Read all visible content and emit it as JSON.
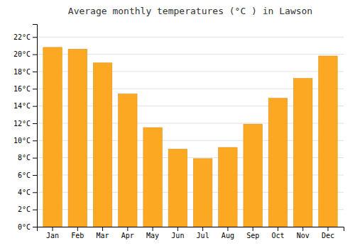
{
  "chart_data": {
    "type": "bar",
    "title": "Average monthly temperatures (°C ) in Lawson",
    "categories": [
      "Jan",
      "Feb",
      "Mar",
      "Apr",
      "May",
      "Jun",
      "Jul",
      "Aug",
      "Sep",
      "Oct",
      "Nov",
      "Dec"
    ],
    "values": [
      20.8,
      20.6,
      19.0,
      15.4,
      11.5,
      9.0,
      7.9,
      9.2,
      11.9,
      14.9,
      17.2,
      19.8
    ],
    "color": "#FCA823",
    "ylim": [
      0,
      23.5
    ],
    "yticks": [
      {
        "value": 0,
        "label": "0°C"
      },
      {
        "value": 2,
        "label": "2°C"
      },
      {
        "value": 4,
        "label": "4°C"
      },
      {
        "value": 6,
        "label": "6°C"
      },
      {
        "value": 8,
        "label": "8°C"
      },
      {
        "value": 10,
        "label": "10°C"
      },
      {
        "value": 12,
        "label": "12°C"
      },
      {
        "value": 14,
        "label": "14°C"
      },
      {
        "value": 16,
        "label": "16°C"
      },
      {
        "value": 18,
        "label": "18°C"
      },
      {
        "value": 20,
        "label": "20°C"
      },
      {
        "value": 22,
        "label": "22°C"
      }
    ],
    "grid": true
  }
}
